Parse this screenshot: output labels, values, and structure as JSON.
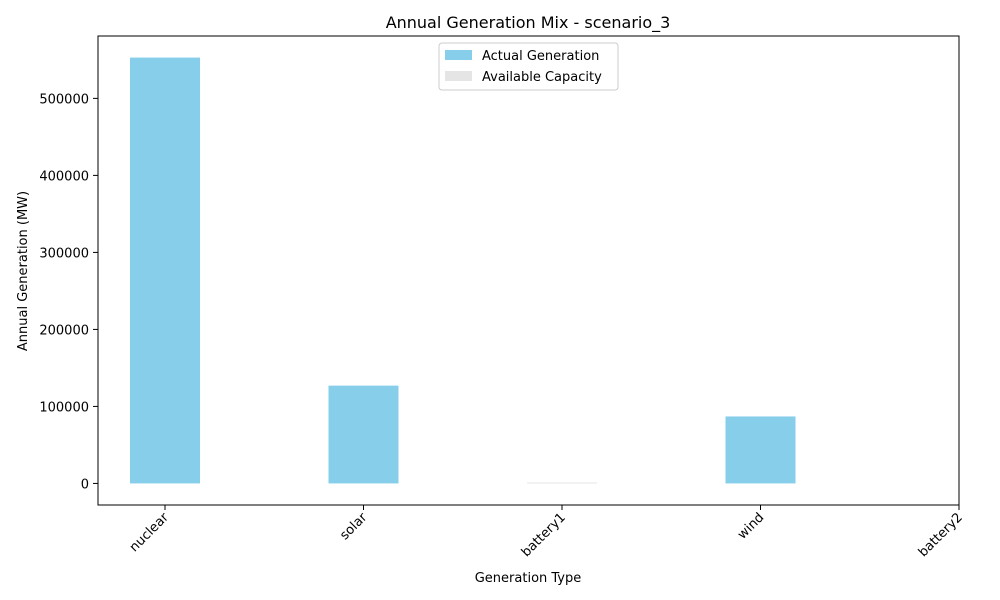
{
  "chart_data": {
    "type": "bar",
    "title": "Annual Generation Mix - scenario_3",
    "xlabel": "Generation Type",
    "ylabel": "Annual Generation (MW)",
    "categories": [
      "nuclear",
      "solar",
      "battery1",
      "wind",
      "battery2"
    ],
    "series": [
      {
        "name": "Actual Generation",
        "values": [
          553000,
          127000,
          0,
          87000,
          0
        ],
        "color": "#87CEEB"
      },
      {
        "name": "Available Capacity",
        "values": [
          0,
          0,
          1200,
          0,
          0
        ],
        "color": "#E5E5E5"
      }
    ],
    "yticks": [
      0,
      100000,
      200000,
      300000,
      400000,
      500000
    ],
    "ylim": [
      -28000,
      581000
    ],
    "legend": "top-center",
    "grid": false
  }
}
